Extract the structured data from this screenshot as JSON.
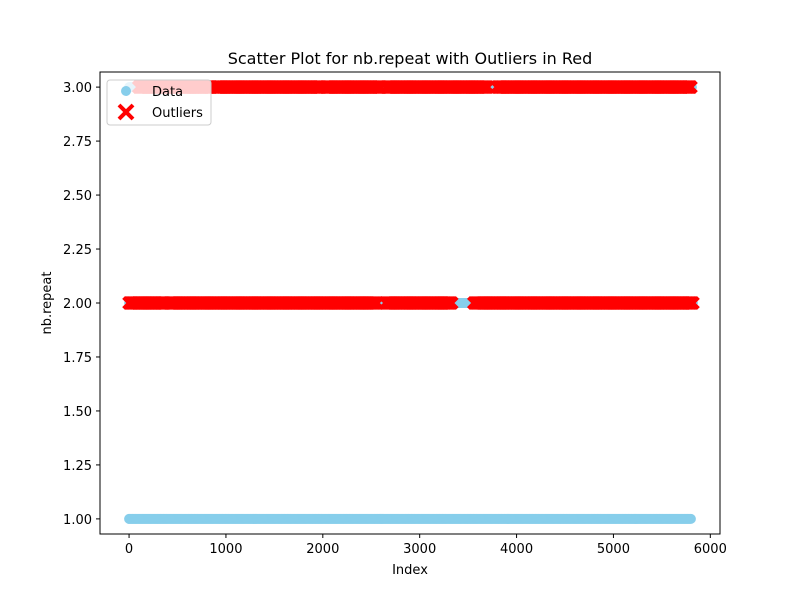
{
  "chart_data": {
    "type": "scatter",
    "title": "Scatter Plot for nb.repeat with Outliers in Red",
    "xlabel": "Index",
    "ylabel": "nb.repeat",
    "xlim": [
      -300,
      6100
    ],
    "ylim": [
      0.93,
      3.07
    ],
    "xticks": [
      0,
      1000,
      2000,
      3000,
      4000,
      5000,
      6000
    ],
    "yticks": [
      1.0,
      1.25,
      1.5,
      1.75,
      2.0,
      2.25,
      2.5,
      2.75,
      3.0
    ],
    "legend": {
      "placement": "upper-left",
      "entries": [
        "Data",
        "Outliers"
      ]
    },
    "series": [
      {
        "name": "Data",
        "marker": "circle",
        "color": "#87ceeb",
        "points": [
          {
            "y": 1.0,
            "x_range": [
              0,
              5800
            ]
          },
          {
            "y": 2.0,
            "x_range": [
              0,
              5820
            ]
          },
          {
            "y": 3.0,
            "x_range": [
              0,
              5810
            ]
          }
        ]
      },
      {
        "name": "Outliers",
        "marker": "x",
        "color": "#ff0000",
        "points": [
          {
            "y": 2.0,
            "segments": [
              [
                0,
                370
              ],
              [
                420,
                2560
              ],
              [
                2650,
                3330
              ],
              [
                3560,
                5820
              ]
            ]
          },
          {
            "y": 3.0,
            "segments": [
              [
                100,
                850
              ],
              [
                900,
                1980
              ],
              [
                2030,
                2600
              ],
              [
                2660,
                3700
              ],
              [
                3800,
                5800
              ]
            ]
          }
        ]
      }
    ]
  }
}
